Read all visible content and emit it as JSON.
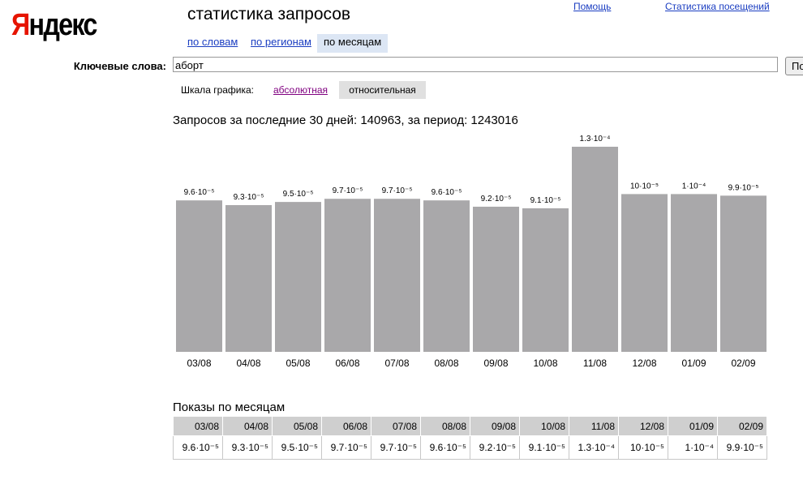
{
  "header": {
    "logo": "Яндекс",
    "title": "статистика запросов",
    "links": [
      "Помощь",
      "Статистика посещений"
    ],
    "tabs": [
      "по словам",
      "по регионам",
      "по месяцам"
    ]
  },
  "search": {
    "label": "Ключевые слова:",
    "query": "аборт",
    "button": "По"
  },
  "scale": {
    "label": "Шкала графика:",
    "options": [
      "абсолютная",
      "относительная"
    ]
  },
  "summary": "Запросов за последние 30 дней: 140963, за период: 1243016",
  "chart_data": {
    "type": "bar",
    "categories": [
      "03/08",
      "04/08",
      "05/08",
      "06/08",
      "07/08",
      "08/08",
      "09/08",
      "10/08",
      "11/08",
      "12/08",
      "01/09",
      "02/09"
    ],
    "values": [
      9.6e-05,
      9.3e-05,
      9.5e-05,
      9.7e-05,
      9.7e-05,
      9.6e-05,
      9.2e-05,
      9.1e-05,
      0.00013,
      0.0001,
      0.0001,
      9.9e-05
    ],
    "value_labels": [
      "9.6·10⁻⁵",
      "9.3·10⁻⁵",
      "9.5·10⁻⁵",
      "9.7·10⁻⁵",
      "9.7·10⁻⁵",
      "9.6·10⁻⁵",
      "9.2·10⁻⁵",
      "9.1·10⁻⁵",
      "1.3·10⁻⁴",
      "10·10⁻⁵",
      "1·10⁻⁴",
      "9.9·10⁻⁵"
    ],
    "color": "#a9a8aa"
  },
  "table_title": "Показы по месяцам"
}
